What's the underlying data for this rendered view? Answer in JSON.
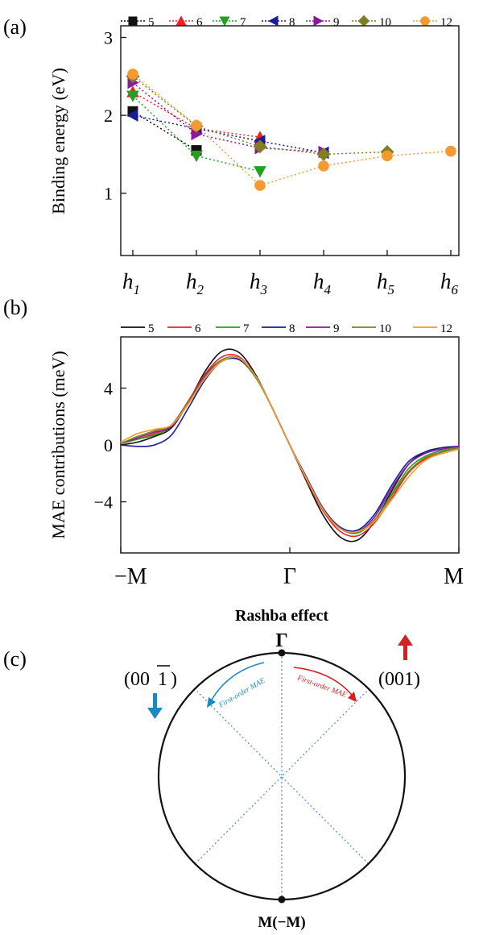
{
  "panels": {
    "a": "(a)",
    "b": "(b)",
    "c": "(c)"
  },
  "chart_data": [
    {
      "type": "line",
      "panel": "(a)",
      "ylabel": "Binding energy (eV)",
      "xlabel": "",
      "categories": [
        "h1",
        "h2",
        "h3",
        "h4",
        "h5",
        "h6"
      ],
      "category_subscripts": [
        "1",
        "2",
        "3",
        "4",
        "5",
        "6"
      ],
      "category_base": "h",
      "ylim": [
        0.2,
        3.15
      ],
      "yticks": [
        1,
        2,
        3
      ],
      "line_style": "dotted",
      "legend_position": "top",
      "series": [
        {
          "name": "5",
          "color": "#111111",
          "marker": "square",
          "values": [
            2.05,
            1.55,
            null,
            null,
            null,
            null
          ]
        },
        {
          "name": "6",
          "color": "#ee2222",
          "marker": "triangle-up",
          "values": [
            2.3,
            1.83,
            1.72,
            null,
            null,
            null
          ]
        },
        {
          "name": "7",
          "color": "#22a022",
          "marker": "triangle-down",
          "values": [
            2.25,
            1.48,
            1.28,
            null,
            null,
            null
          ]
        },
        {
          "name": "8",
          "color": "#1a1a9c",
          "marker": "triangle-left",
          "values": [
            2.0,
            1.83,
            1.67,
            1.52,
            null,
            null
          ]
        },
        {
          "name": "9",
          "color": "#8a1a9c",
          "marker": "triangle-right",
          "values": [
            2.42,
            1.76,
            1.58,
            1.53,
            null,
            null
          ]
        },
        {
          "name": "10",
          "color": "#7f7f22",
          "marker": "diamond",
          "values": [
            2.5,
            1.86,
            1.6,
            1.5,
            1.53,
            null
          ]
        },
        {
          "name": "12",
          "color": "#f59a30",
          "marker": "circle",
          "values": [
            2.53,
            1.87,
            1.1,
            1.35,
            1.48,
            1.54
          ]
        }
      ]
    },
    {
      "type": "line",
      "panel": "(b)",
      "ylabel": "MAE contributions (meV)",
      "xlabel": "",
      "xticks": [
        "−M",
        "Γ",
        "M"
      ],
      "x": [
        -1.0,
        -0.9,
        -0.8,
        -0.7,
        -0.6,
        -0.5,
        -0.4,
        -0.3,
        -0.2,
        -0.1,
        0.0,
        0.1,
        0.2,
        0.3,
        0.4,
        0.5,
        0.6,
        0.7,
        0.8,
        0.9,
        1.0
      ],
      "ylim": [
        -7.6,
        7.6
      ],
      "yticks": [
        -4,
        0,
        4
      ],
      "legend_position": "top",
      "series": [
        {
          "name": "5",
          "color": "#111111",
          "values": [
            0.0,
            0.2,
            0.6,
            1.2,
            3.0,
            5.2,
            6.6,
            6.5,
            4.9,
            2.5,
            0.0,
            -2.6,
            -5.0,
            -6.5,
            -6.7,
            -5.4,
            -3.3,
            -1.4,
            -0.5,
            -0.2,
            -0.1
          ]
        },
        {
          "name": "6",
          "color": "#ee2222",
          "values": [
            0.1,
            0.4,
            0.8,
            1.4,
            3.1,
            5.0,
            6.2,
            6.2,
            4.8,
            2.5,
            0.0,
            -2.5,
            -4.7,
            -6.1,
            -6.4,
            -5.5,
            -3.8,
            -2.0,
            -1.0,
            -0.6,
            -0.3
          ]
        },
        {
          "name": "7",
          "color": "#22a022",
          "values": [
            0.1,
            0.4,
            0.7,
            1.3,
            2.9,
            4.7,
            5.9,
            6.0,
            4.7,
            2.5,
            0.0,
            -2.4,
            -4.6,
            -5.9,
            -6.2,
            -5.3,
            -3.5,
            -1.7,
            -0.8,
            -0.4,
            -0.2
          ]
        },
        {
          "name": "8",
          "color": "#1a1a9c",
          "values": [
            0.0,
            -0.1,
            0.0,
            0.7,
            2.6,
            4.6,
            5.9,
            6.0,
            4.8,
            2.5,
            0.0,
            -2.3,
            -4.5,
            -5.8,
            -6.0,
            -4.9,
            -2.9,
            -1.2,
            -0.5,
            -0.2,
            -0.1
          ]
        },
        {
          "name": "9",
          "color": "#8a1a9c",
          "values": [
            0.1,
            0.5,
            0.9,
            1.3,
            3.0,
            4.9,
            6.0,
            6.1,
            4.8,
            2.5,
            0.0,
            -2.4,
            -4.6,
            -5.9,
            -6.1,
            -5.1,
            -3.1,
            -1.4,
            -0.6,
            -0.3,
            -0.1
          ]
        },
        {
          "name": "10",
          "color": "#7f7f22",
          "values": [
            0.1,
            0.6,
            1.0,
            1.4,
            3.0,
            4.8,
            6.0,
            6.1,
            4.8,
            2.5,
            0.0,
            -2.4,
            -4.6,
            -5.9,
            -6.1,
            -5.3,
            -3.6,
            -1.9,
            -0.9,
            -0.5,
            -0.2
          ]
        },
        {
          "name": "12",
          "color": "#f59a30",
          "values": [
            0.2,
            0.8,
            1.1,
            1.4,
            2.9,
            4.7,
            5.9,
            6.1,
            4.8,
            2.5,
            0.0,
            -2.4,
            -4.6,
            -5.9,
            -6.1,
            -5.4,
            -3.9,
            -2.3,
            -1.1,
            -0.6,
            -0.3
          ]
        }
      ]
    }
  ],
  "diagram_c": {
    "title": "Rashba effect",
    "top_label": "Γ",
    "bottom_label": "M(−M)",
    "left_direction": "(00",
    "left_direction_bar": "1",
    "left_direction_close": ")",
    "right_direction": "(001)",
    "left_arc_label": "First-order MAE",
    "right_arc_label": "First-order MAE",
    "left_color": "#1a8ac0",
    "right_color": "#d42020",
    "dash_color": "#5a8fd0"
  }
}
